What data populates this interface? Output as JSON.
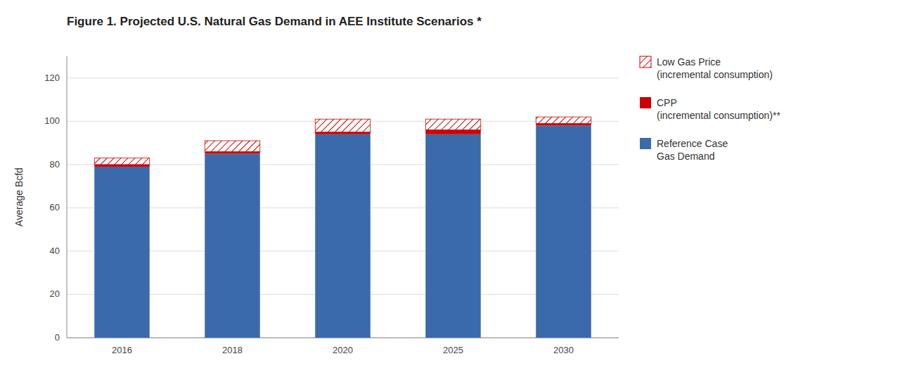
{
  "chart_data": {
    "type": "bar",
    "stacked": true,
    "title": "Figure 1. Projected U.S. Natural Gas Demand in AEE Institute Scenarios *",
    "y_label": "Average Bcfd",
    "categories": [
      "2016",
      "2018",
      "2020",
      "2025",
      "2030"
    ],
    "series": [
      {
        "name": "Reference Case\nGas Demand",
        "color": "#3B6AAA",
        "values": [
          79,
          85,
          94,
          94,
          98
        ]
      },
      {
        "name": "CPP\n(incremental consumption)**",
        "color": "#CC0000",
        "values": [
          1,
          1,
          1,
          2,
          1
        ]
      },
      {
        "name": "Low Gas Price\n(incremental consumption)",
        "color": "#CC0000",
        "values": [
          3,
          5,
          6,
          5,
          3
        ]
      }
    ],
    "ylim": [
      0,
      130
    ],
    "yticks": [
      0,
      20,
      40,
      60,
      80,
      100,
      120
    ],
    "grid": true,
    "legend": "right"
  }
}
